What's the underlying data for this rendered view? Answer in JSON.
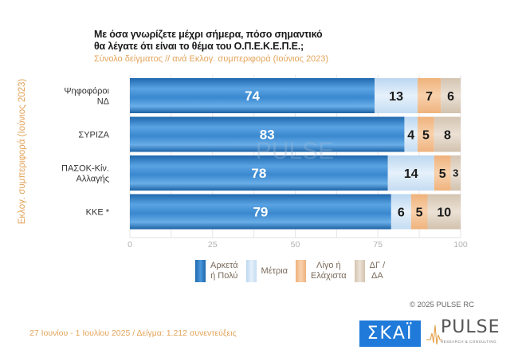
{
  "chart_data": {
    "type": "bar",
    "orientation": "horizontal",
    "stacked": true,
    "title": "Με όσα γνωρίζετε μέχρι σήμερα, πόσο σημαντικό θα λέγατε ότι είναι το θέμα του  Ο.Π.Ε.Κ.Ε.Π.Ε.;",
    "title_lines": [
      "Με όσα γνωρίζετε μέχρι σήμερα, πόσο σημαντικό",
      "θα λέγατε ότι είναι το θέμα του  Ο.Π.Ε.Κ.Ε.Π.Ε.;"
    ],
    "subtitle": "Σύνολο δείγματος // ανά Εκλογ. συμπεριφορά (Ιούνιος 2023)",
    "ylabel": "Εκλογ. συμπεριφορά (Ιούνιος 2023)",
    "xlabel": "",
    "categories": [
      {
        "lines": [
          "Ψηφοφόροι",
          "ΝΔ"
        ]
      },
      {
        "lines": [
          "ΣΥΡΙΖΑ"
        ]
      },
      {
        "lines": [
          "ΠΑΣΟΚ-Κίν.",
          "Αλλαγής"
        ]
      },
      {
        "lines": [
          "ΚΚΕ *"
        ]
      }
    ],
    "series": [
      {
        "name": "Αρκετά ή Πολύ",
        "legend": "Αρκετά\nή Πολύ",
        "color": "#2f7cc4",
        "label_color": "#ffffff",
        "values": [
          74,
          83,
          78,
          79
        ]
      },
      {
        "name": "Μέτρια",
        "legend": "Μέτρια",
        "color": "#cfe3f6",
        "label_color": "#1a1a1a",
        "values": [
          13,
          4,
          14,
          6
        ]
      },
      {
        "name": "Λίγο ή Ελάχιστα",
        "legend": "Λίγο ή\nΕλάχιστα",
        "color": "#f3c296",
        "label_color": "#1a1a1a",
        "values": [
          7,
          5,
          5,
          5
        ]
      },
      {
        "name": "ΔΓ / ΔΑ",
        "legend": "ΔΓ /\nΔΑ",
        "color": "#ddd0c1",
        "label_color": "#1a1a1a",
        "values": [
          6,
          8,
          3,
          10
        ]
      }
    ],
    "xlim": [
      0,
      100
    ],
    "xticks": [
      0,
      25,
      50,
      75,
      100
    ],
    "grid": true,
    "legend_position": "bottom",
    "watermark": "PULSE"
  },
  "footer": {
    "copyright": "© 2025  PULSE RC",
    "info": "27 Ιουνίου - 1 Ιουλίου 2025  /  Δείγμα:  1.212 συνεντεύξεις",
    "skai_logo": "ΣΚΑΪ",
    "pulse_logo": "PULSE",
    "pulse_sub": "RESEARCH & CONSULTING"
  }
}
